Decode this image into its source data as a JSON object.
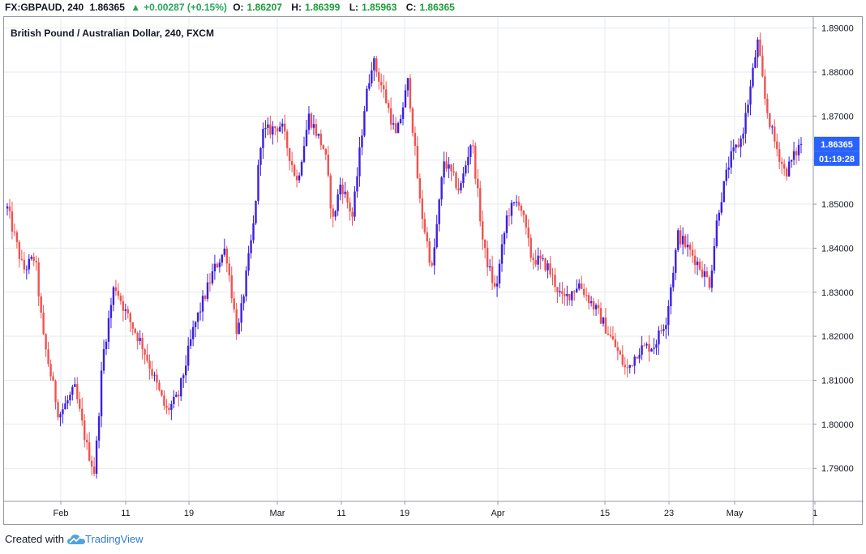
{
  "header": {
    "symbol": "FX:GBPAUD, 240",
    "price": "1.86365",
    "change": "+0.00287 (+0.15%)",
    "o_label": "O:",
    "o_value": "1.86207",
    "h_label": "H:",
    "h_value": "1.86399",
    "l_label": "L:",
    "l_value": "1.85963",
    "c_label": "C:",
    "c_value": "1.86365"
  },
  "footer": {
    "created_with": "Created with",
    "brand": "TradingView"
  },
  "colors": {
    "up": "#3b1fe0",
    "down": "#ef5350",
    "badge": "#2962ff",
    "grid": "#e6e9f0"
  },
  "chart_data": {
    "type": "candlestick",
    "title": "British Pound / Australian Dollar, 240, FXCM",
    "ylim": [
      1.7825,
      1.8925
    ],
    "y_ticks": [
      "1.89000",
      "1.88000",
      "1.87000",
      "1.86000",
      "1.85000",
      "1.84000",
      "1.83000",
      "1.82000",
      "1.81000",
      "1.80000",
      "1.79000"
    ],
    "x_ticks": [
      "Feb",
      "11",
      "19",
      "Mar",
      "11",
      "19",
      "Apr",
      "15",
      "23",
      "May",
      "1"
    ],
    "last_price_label": "1.86365",
    "countdown_label": "01:19:28",
    "grid": true,
    "trend": [
      [
        0,
        1.849
      ],
      [
        0.02,
        1.835
      ],
      [
        0.035,
        1.838
      ],
      [
        0.045,
        1.82
      ],
      [
        0.065,
        1.802
      ],
      [
        0.085,
        1.808
      ],
      [
        0.1,
        1.795
      ],
      [
        0.11,
        1.789
      ],
      [
        0.12,
        1.815
      ],
      [
        0.135,
        1.832
      ],
      [
        0.15,
        1.825
      ],
      [
        0.17,
        1.818
      ],
      [
        0.2,
        1.803
      ],
      [
        0.215,
        1.806
      ],
      [
        0.235,
        1.822
      ],
      [
        0.26,
        1.835
      ],
      [
        0.275,
        1.84
      ],
      [
        0.29,
        1.82
      ],
      [
        0.31,
        1.845
      ],
      [
        0.32,
        1.866
      ],
      [
        0.345,
        1.868
      ],
      [
        0.365,
        1.855
      ],
      [
        0.38,
        1.87
      ],
      [
        0.4,
        1.862
      ],
      [
        0.41,
        1.846
      ],
      [
        0.42,
        1.855
      ],
      [
        0.435,
        1.847
      ],
      [
        0.45,
        1.872
      ],
      [
        0.46,
        1.883
      ],
      [
        0.475,
        1.875
      ],
      [
        0.49,
        1.865
      ],
      [
        0.505,
        1.878
      ],
      [
        0.52,
        1.85
      ],
      [
        0.535,
        1.835
      ],
      [
        0.55,
        1.86
      ],
      [
        0.57,
        1.853
      ],
      [
        0.585,
        1.865
      ],
      [
        0.6,
        1.84
      ],
      [
        0.615,
        1.83
      ],
      [
        0.63,
        1.848
      ],
      [
        0.645,
        1.851
      ],
      [
        0.66,
        1.838
      ],
      [
        0.68,
        1.836
      ],
      [
        0.7,
        1.828
      ],
      [
        0.72,
        1.832
      ],
      [
        0.745,
        1.825
      ],
      [
        0.765,
        1.818
      ],
      [
        0.78,
        1.812
      ],
      [
        0.795,
        1.817
      ],
      [
        0.815,
        1.818
      ],
      [
        0.83,
        1.824
      ],
      [
        0.845,
        1.843
      ],
      [
        0.865,
        1.838
      ],
      [
        0.885,
        1.832
      ],
      [
        0.895,
        1.848
      ],
      [
        0.91,
        1.86
      ],
      [
        0.925,
        1.865
      ],
      [
        0.935,
        1.875
      ],
      [
        0.945,
        1.887
      ],
      [
        0.955,
        1.873
      ],
      [
        0.965,
        1.865
      ],
      [
        0.98,
        1.857
      ],
      [
        1.0,
        1.864
      ]
    ]
  }
}
